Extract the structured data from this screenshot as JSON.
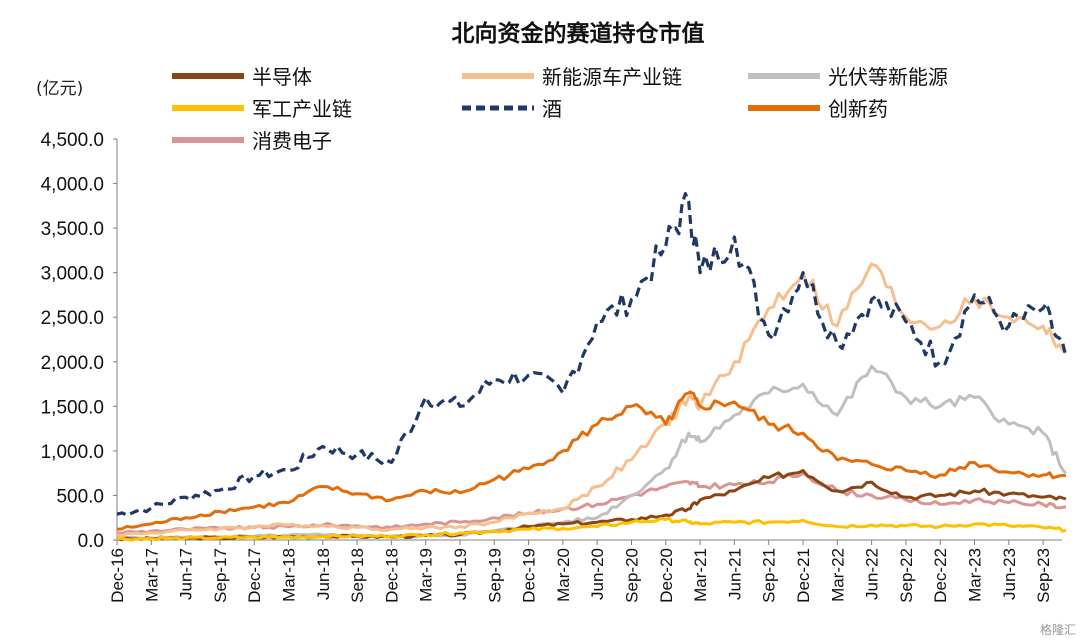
{
  "chart_data": {
    "type": "line",
    "title": "北向资金的赛道持仓市值",
    "unit_label": "(亿元)",
    "ylim": [
      0,
      4500
    ],
    "y_ticks": [
      "0.0",
      "500.0",
      "1,000.0",
      "1,500.0",
      "2,000.0",
      "2,500.0",
      "3,000.0",
      "3,500.0",
      "4,000.0",
      "4,500.0"
    ],
    "x_ticks": [
      "Dec-16",
      "Mar-17",
      "Jun-17",
      "Sep-17",
      "Dec-17",
      "Mar-18",
      "Jun-18",
      "Sep-18",
      "Dec-18",
      "Mar-19",
      "Jun-19",
      "Sep-19",
      "Dec-19",
      "Mar-20",
      "Jun-20",
      "Sep-20",
      "Dec-20",
      "Mar-21",
      "Jun-21",
      "Sep-21",
      "Dec-21",
      "Mar-22",
      "Jun-22",
      "Sep-22",
      "Dec-22",
      "Mar-23",
      "Jun-23",
      "Sep-23"
    ],
    "x": [
      "2016-12",
      "2017-03",
      "2017-06",
      "2017-09",
      "2017-12",
      "2018-03",
      "2018-06",
      "2018-09",
      "2018-12",
      "2019-03",
      "2019-06",
      "2019-09",
      "2019-12",
      "2020-03",
      "2020-06",
      "2020-09",
      "2020-12",
      "2021-02",
      "2021-03",
      "2021-06",
      "2021-09",
      "2021-12",
      "2022-03",
      "2022-06",
      "2022-09",
      "2022-12",
      "2023-03",
      "2023-06",
      "2023-09",
      "2023-11"
    ],
    "legend_position": "top",
    "grid": false,
    "series": [
      {
        "name": "半导体",
        "color": "#8B4513",
        "dash": false,
        "values": [
          10,
          15,
          20,
          25,
          30,
          35,
          40,
          40,
          35,
          50,
          60,
          100,
          150,
          180,
          200,
          230,
          280,
          350,
          450,
          550,
          700,
          780,
          550,
          650,
          480,
          500,
          550,
          520,
          480,
          460
        ]
      },
      {
        "name": "新能源车产业链",
        "color": "#F7BE8E",
        "dash": false,
        "values": [
          60,
          80,
          110,
          130,
          150,
          170,
          160,
          140,
          120,
          140,
          150,
          200,
          300,
          350,
          600,
          900,
          1300,
          1600,
          1500,
          2000,
          2600,
          3000,
          2400,
          3100,
          2500,
          2400,
          2700,
          2500,
          2400,
          2100
        ]
      },
      {
        "name": "光伏等新能源",
        "color": "#BFBFBF",
        "dash": false,
        "values": [
          20,
          25,
          30,
          35,
          40,
          50,
          55,
          50,
          40,
          50,
          60,
          100,
          150,
          200,
          250,
          500,
          800,
          1200,
          1100,
          1400,
          1650,
          1750,
          1400,
          1950,
          1600,
          1500,
          1600,
          1300,
          1200,
          750
        ]
      },
      {
        "name": "军工产业链",
        "color": "#FFC000",
        "dash": false,
        "values": [
          10,
          15,
          20,
          25,
          30,
          35,
          40,
          45,
          45,
          60,
          80,
          100,
          120,
          130,
          150,
          200,
          230,
          200,
          180,
          200,
          200,
          220,
          150,
          170,
          160,
          150,
          180,
          160,
          140,
          110
        ]
      },
      {
        "name": "酒",
        "color": "#1F3864",
        "dash": true,
        "values": [
          290,
          360,
          480,
          560,
          720,
          780,
          1050,
          960,
          870,
          1600,
          1500,
          1800,
          1850,
          1650,
          2450,
          2700,
          3300,
          3800,
          3000,
          3400,
          2300,
          3000,
          2200,
          2700,
          2450,
          2000,
          2750,
          2400,
          2600,
          2050
        ]
      },
      {
        "name": "创新药",
        "color": "#E46C0A",
        "dash": false,
        "values": [
          120,
          180,
          250,
          320,
          370,
          420,
          600,
          520,
          450,
          550,
          530,
          680,
          800,
          1000,
          1300,
          1500,
          1300,
          1650,
          1500,
          1550,
          1300,
          1200,
          900,
          850,
          780,
          730,
          870,
          760,
          730,
          720
        ]
      },
      {
        "name": "消费电子",
        "color": "#D99594",
        "dash": false,
        "values": [
          80,
          100,
          120,
          130,
          140,
          150,
          170,
          160,
          140,
          180,
          200,
          250,
          300,
          350,
          400,
          500,
          600,
          650,
          600,
          620,
          650,
          750,
          550,
          500,
          450,
          400,
          450,
          420,
          400,
          370
        ]
      }
    ]
  },
  "watermark": "格隆汇"
}
